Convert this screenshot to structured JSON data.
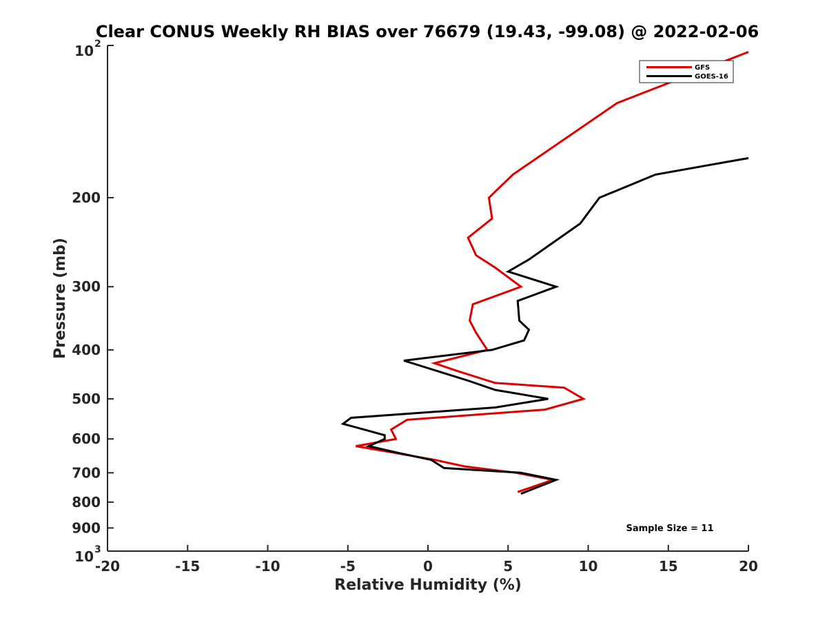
{
  "chart_data": {
    "type": "line",
    "title": "Clear CONUS Weekly RH BIAS over 76679 (19.43, -99.08) @ 2022-02-06",
    "xlabel": "Relative Humidity (%)",
    "ylabel": "Pressure (mb)",
    "xlim": [
      -20,
      20
    ],
    "ylim": [
      100,
      1000
    ],
    "y_scale": "log",
    "y_reversed": true,
    "grid": false,
    "legend_position": "top-right",
    "annotation": "Sample Size = 11",
    "x_ticks": [
      {
        "value": -20,
        "label": "-20"
      },
      {
        "value": -15,
        "label": "-15"
      },
      {
        "value": -10,
        "label": "-10"
      },
      {
        "value": -5,
        "label": "-5"
      },
      {
        "value": 0,
        "label": "0"
      },
      {
        "value": 5,
        "label": "5"
      },
      {
        "value": 10,
        "label": "10"
      },
      {
        "value": 15,
        "label": "15"
      },
      {
        "value": 20,
        "label": "20"
      }
    ],
    "y_ticks": [
      {
        "value": 100,
        "label": "10",
        "sup": "2"
      },
      {
        "value": 200,
        "label": "200",
        "sup": ""
      },
      {
        "value": 300,
        "label": "300",
        "sup": ""
      },
      {
        "value": 400,
        "label": "400",
        "sup": ""
      },
      {
        "value": 500,
        "label": "500",
        "sup": ""
      },
      {
        "value": 600,
        "label": "600",
        "sup": ""
      },
      {
        "value": 700,
        "label": "700",
        "sup": ""
      },
      {
        "value": 800,
        "label": "800",
        "sup": ""
      },
      {
        "value": 900,
        "label": "900",
        "sup": ""
      },
      {
        "value": 1000,
        "label": "10",
        "sup": "3"
      }
    ],
    "series": [
      {
        "name": "GFS",
        "color": "#e00000",
        "points": [
          {
            "x": 5.6,
            "p": 764
          },
          {
            "x": 7.8,
            "p": 723
          },
          {
            "x": 5.5,
            "p": 700
          },
          {
            "x": 2.3,
            "p": 680
          },
          {
            "x": 0.4,
            "p": 660
          },
          {
            "x": -2.0,
            "p": 640
          },
          {
            "x": -4.5,
            "p": 620
          },
          {
            "x": -2.0,
            "p": 600
          },
          {
            "x": -2.3,
            "p": 575
          },
          {
            "x": -1.3,
            "p": 550
          },
          {
            "x": 7.3,
            "p": 525
          },
          {
            "x": 9.7,
            "p": 500
          },
          {
            "x": 8.5,
            "p": 475
          },
          {
            "x": 4.2,
            "p": 465
          },
          {
            "x": 1.8,
            "p": 440
          },
          {
            "x": 0.4,
            "p": 425
          },
          {
            "x": 3.7,
            "p": 400
          },
          {
            "x": 3.0,
            "p": 370
          },
          {
            "x": 2.6,
            "p": 350
          },
          {
            "x": 2.8,
            "p": 325
          },
          {
            "x": 5.8,
            "p": 300
          },
          {
            "x": 4.2,
            "p": 275
          },
          {
            "x": 3.0,
            "p": 260
          },
          {
            "x": 2.5,
            "p": 240
          },
          {
            "x": 4.0,
            "p": 220
          },
          {
            "x": 3.8,
            "p": 200
          },
          {
            "x": 5.3,
            "p": 180
          },
          {
            "x": 11.8,
            "p": 130
          },
          {
            "x": 20.0,
            "p": 103
          }
        ]
      },
      {
        "name": "GOES-16",
        "color": "#000000",
        "points": [
          {
            "x": 5.8,
            "p": 770
          },
          {
            "x": 8.0,
            "p": 723
          },
          {
            "x": 5.8,
            "p": 700
          },
          {
            "x": 1.0,
            "p": 685
          },
          {
            "x": 0.2,
            "p": 660
          },
          {
            "x": -1.8,
            "p": 640
          },
          {
            "x": -3.7,
            "p": 620
          },
          {
            "x": -2.7,
            "p": 600
          },
          {
            "x": -2.7,
            "p": 590
          },
          {
            "x": -5.3,
            "p": 560
          },
          {
            "x": -4.8,
            "p": 545
          },
          {
            "x": 4.2,
            "p": 520
          },
          {
            "x": 7.5,
            "p": 500
          },
          {
            "x": 4.2,
            "p": 480
          },
          {
            "x": 2.5,
            "p": 460
          },
          {
            "x": -1.5,
            "p": 420
          },
          {
            "x": 4.0,
            "p": 400
          },
          {
            "x": 6.0,
            "p": 383
          },
          {
            "x": 6.3,
            "p": 365
          },
          {
            "x": 5.7,
            "p": 350
          },
          {
            "x": 5.6,
            "p": 320
          },
          {
            "x": 8.0,
            "p": 300
          },
          {
            "x": 5.0,
            "p": 280
          },
          {
            "x": 6.3,
            "p": 265
          },
          {
            "x": 9.5,
            "p": 225
          },
          {
            "x": 10.7,
            "p": 200
          },
          {
            "x": 14.2,
            "p": 180
          },
          {
            "x": 20.0,
            "p": 167
          }
        ]
      }
    ]
  }
}
